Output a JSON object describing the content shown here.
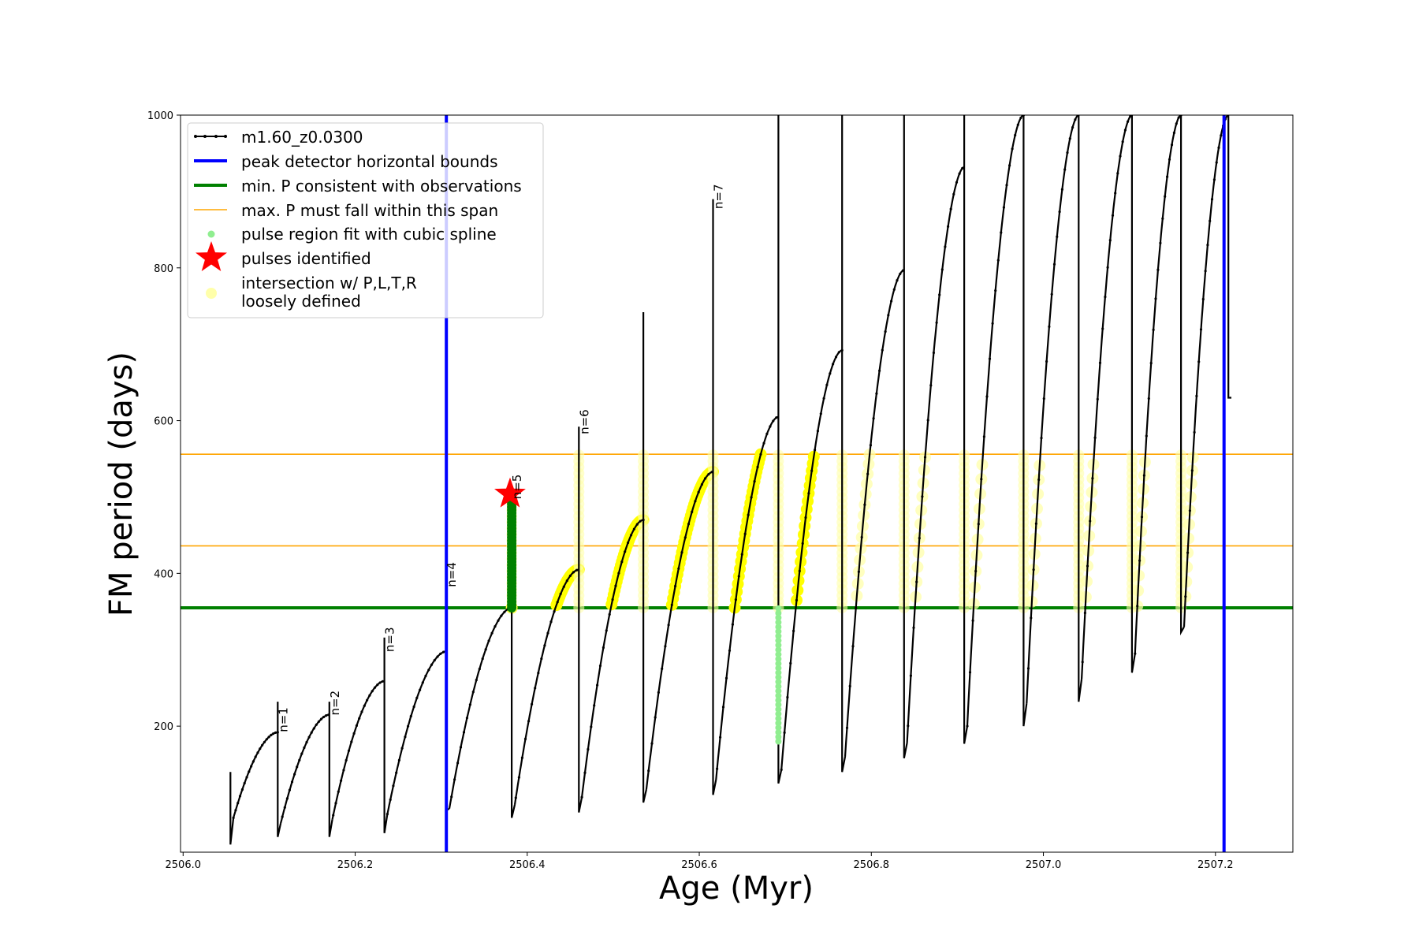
{
  "chart_data": {
    "type": "line",
    "title": "",
    "xlabel": "Age (Myr)",
    "ylabel": "FM period (days)",
    "xlim": [
      2505.997,
      2507.29
    ],
    "ylim": [
      35,
      1000
    ],
    "xticks": [
      "2506.0",
      "2506.2",
      "2506.4",
      "2506.6",
      "2506.8",
      "2507.0",
      "2507.2"
    ],
    "xtick_values": [
      2506.0,
      2506.2,
      2506.4,
      2506.6,
      2506.8,
      2507.0,
      2507.2
    ],
    "yticks": [
      "200",
      "400",
      "600",
      "800",
      "1000"
    ],
    "ytick_values": [
      200,
      400,
      600,
      800,
      1000
    ],
    "grid": false,
    "legend_placement": "upper-left",
    "legend": [
      {
        "key": "model",
        "label": "m1.60_z0.0300"
      },
      {
        "key": "bounds",
        "label": "peak detector horizontal bounds"
      },
      {
        "key": "minp",
        "label": "min. P consistent with observations"
      },
      {
        "key": "maxp",
        "label": "max. P must fall within this span"
      },
      {
        "key": "spline",
        "label": "pulse region fit with cubic spline"
      },
      {
        "key": "pulses",
        "label": "pulses identified"
      },
      {
        "key": "inter",
        "label": "intersection w/ P,L,T,R",
        "label2": "loosely defined"
      }
    ],
    "colors": {
      "model": "#000000",
      "bounds": "#0000ff",
      "minp": "#008000",
      "maxp": "#ffa500",
      "spline": "#90ee90",
      "pulses": "#ff0000",
      "intersection": "#ffff00",
      "intersection_loose": "#ffffaa"
    },
    "vertical_bounds": [
      2506.306,
      2507.21
    ],
    "min_period": 355,
    "max_period_span": [
      436,
      556
    ],
    "pulse_labels": [
      {
        "text": "n=1",
        "x": 2506.11,
        "y": 190
      },
      {
        "text": "n=2",
        "x": 2506.17,
        "y": 212
      },
      {
        "text": "n=3",
        "x": 2506.234,
        "y": 295
      },
      {
        "text": "n=4",
        "x": 2506.306,
        "y": 380
      },
      {
        "text": "n=5",
        "x": 2506.382,
        "y": 495
      },
      {
        "text": "n=6",
        "x": 2506.46,
        "y": 580
      },
      {
        "text": "n=7",
        "x": 2506.616,
        "y": 875
      }
    ],
    "pulse_identified": {
      "x": 2506.38,
      "y": 504
    },
    "pulses": [
      {
        "t": 2506.055,
        "amin": 80,
        "apeak": 192,
        "spike": 140,
        "drop": 45
      },
      {
        "t": 2506.11,
        "amin": 73,
        "apeak": 215,
        "spike": 232,
        "drop": 55
      },
      {
        "t": 2506.17,
        "amin": 78,
        "apeak": 259,
        "spike": 232,
        "drop": 55
      },
      {
        "t": 2506.234,
        "amin": 85,
        "apeak": 298,
        "spike": 316,
        "drop": 60
      },
      {
        "t": 2506.306,
        "amin": 92,
        "apeak": 355,
        "spike": 380,
        "drop": 90
      },
      {
        "t": 2506.382,
        "amin": 97,
        "apeak": 405,
        "spike": 500,
        "drop": 80
      },
      {
        "t": 2506.46,
        "amin": 107,
        "apeak": 470,
        "spike": 592,
        "drop": 87
      },
      {
        "t": 2506.535,
        "amin": 117,
        "apeak": 533,
        "spike": 742,
        "drop": 100
      },
      {
        "t": 2506.616,
        "amin": 130,
        "apeak": 605,
        "spike": 890,
        "drop": 110
      },
      {
        "t": 2506.692,
        "amin": 143,
        "apeak": 692,
        "spike": 1000,
        "drop": 125
      },
      {
        "t": 2506.766,
        "amin": 160,
        "apeak": 797,
        "spike": 1000,
        "drop": 140
      },
      {
        "t": 2506.838,
        "amin": 178,
        "apeak": 932,
        "spike": 1000,
        "drop": 158
      },
      {
        "t": 2506.908,
        "amin": 200,
        "apeak": 1000,
        "spike": 1000,
        "drop": 177
      },
      {
        "t": 2506.977,
        "amin": 230,
        "apeak": 1000,
        "spike": 1000,
        "drop": 200
      },
      {
        "t": 2507.041,
        "amin": 262,
        "apeak": 1000,
        "spike": 1000,
        "drop": 232
      },
      {
        "t": 2507.103,
        "amin": 295,
        "apeak": 1000,
        "spike": 1000,
        "drop": 270
      },
      {
        "t": 2507.16,
        "amin": 330,
        "apeak": 1000,
        "spike": 1000,
        "drop": 323
      },
      {
        "t": 2507.215,
        "amin": 630,
        "apeak": 1000,
        "spike": 1000,
        "drop": 630
      }
    ],
    "spline_region": {
      "x": 2506.692,
      "y": [
        180,
        355
      ]
    },
    "green_pulse": {
      "x": 2506.382,
      "y": [
        355,
        495
      ]
    }
  }
}
